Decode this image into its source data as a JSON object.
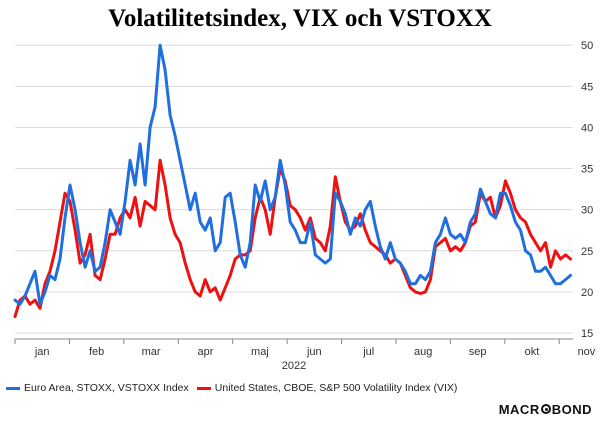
{
  "chart_data": {
    "type": "line",
    "title": "Volatilitetsindex, VIX och VSTOXX",
    "xlabel": "2022",
    "ylabel": "",
    "ylim": [
      15,
      51
    ],
    "y_ticks": [
      "15",
      "20",
      "25",
      "30",
      "35",
      "40",
      "45",
      "50"
    ],
    "x_ticks": [
      "jan",
      "feb",
      "mar",
      "apr",
      "maj",
      "jun",
      "jul",
      "aug",
      "sep",
      "okt",
      "nov"
    ],
    "x_unit": "weeks since start of 2022",
    "series": [
      {
        "name": "Euro Area, STOXX, VSTOXX Index",
        "color": "#1f6fe0",
        "x": [
          0,
          0.4,
          0.8,
          1.2,
          1.6,
          2.0,
          2.4,
          2.8,
          3.2,
          3.6,
          4.0,
          4.4,
          4.8,
          5.2,
          5.6,
          6.0,
          6.4,
          6.8,
          7.2,
          7.6,
          8.0,
          8.4,
          8.8,
          9.2,
          9.6,
          10.0,
          10.4,
          10.8,
          11.2,
          11.6,
          12.0,
          12.4,
          12.8,
          13.2,
          13.6,
          14.0,
          14.4,
          14.8,
          15.2,
          15.6,
          16.0,
          16.4,
          16.8,
          17.2,
          17.6,
          18.0,
          18.4,
          18.8,
          19.2,
          19.6,
          20.0,
          20.4,
          20.8,
          21.2,
          21.6,
          22.0,
          22.4,
          22.8,
          23.2,
          23.6,
          24.0,
          24.4,
          24.8,
          25.2,
          25.6,
          26.0,
          26.4,
          26.8,
          27.2,
          27.6,
          28.0,
          28.4,
          28.8,
          29.2,
          29.6,
          30.0,
          30.4,
          30.8,
          31.2,
          31.6,
          32.0,
          32.4,
          32.8,
          33.2,
          33.6,
          34.0,
          34.4,
          34.8,
          35.2,
          35.6,
          36.0,
          36.4,
          36.8,
          37.2,
          37.6,
          38.0,
          38.4,
          38.8,
          39.2,
          39.6,
          40.0,
          40.4,
          40.8,
          41.2,
          41.6,
          42.0,
          42.4,
          42.8,
          43.2,
          43.6,
          44.0,
          44.4
        ],
        "values": [
          19.0,
          18.5,
          19.5,
          21.0,
          22.5,
          18.5,
          20.0,
          22.0,
          21.5,
          24.0,
          29.0,
          33.0,
          30.0,
          26.0,
          23.0,
          25.0,
          22.5,
          23.0,
          26.0,
          30.0,
          28.5,
          27.0,
          31.0,
          36.0,
          33.0,
          38.0,
          33.0,
          40.0,
          42.5,
          50.0,
          47.0,
          41.5,
          39.0,
          36.0,
          33.0,
          30.0,
          32.0,
          28.5,
          27.5,
          29.0,
          25.0,
          26.0,
          31.5,
          32.0,
          28.5,
          24.5,
          23.0,
          26.0,
          33.0,
          31.0,
          33.5,
          30.0,
          31.5,
          36.0,
          33.0,
          28.5,
          27.5,
          26.0,
          26.0,
          28.5,
          24.5,
          24.0,
          23.5,
          24.0,
          32.0,
          31.0,
          29.5,
          27.0,
          29.0,
          28.0,
          30.0,
          31.0,
          28.0,
          25.5,
          24.0,
          26.0,
          24.0,
          23.5,
          22.5,
          21.0,
          21.0,
          22.0,
          21.5,
          22.5,
          26.0,
          27.0,
          29.0,
          27.0,
          26.5,
          27.0,
          26.0,
          28.5,
          29.5,
          32.5,
          31.0,
          29.5,
          29.0,
          32.0,
          32.0,
          30.5,
          28.5,
          27.5,
          25.0,
          24.5,
          22.5,
          22.5,
          23.0,
          22.0,
          21.0,
          21.0,
          21.5,
          22.0
        ]
      },
      {
        "name": "United States, CBOE, S&P 500 Volatility Index (VIX)",
        "color": "#ee1111",
        "x": [
          0,
          0.4,
          0.8,
          1.2,
          1.6,
          2.0,
          2.4,
          2.8,
          3.2,
          3.6,
          4.0,
          4.4,
          4.8,
          5.2,
          5.6,
          6.0,
          6.4,
          6.8,
          7.2,
          7.6,
          8.0,
          8.4,
          8.8,
          9.2,
          9.6,
          10.0,
          10.4,
          10.8,
          11.2,
          11.6,
          12.0,
          12.4,
          12.8,
          13.2,
          13.6,
          14.0,
          14.4,
          14.8,
          15.2,
          15.6,
          16.0,
          16.4,
          16.8,
          17.2,
          17.6,
          18.0,
          18.4,
          18.8,
          19.2,
          19.6,
          20.0,
          20.4,
          20.8,
          21.2,
          21.6,
          22.0,
          22.4,
          22.8,
          23.2,
          23.6,
          24.0,
          24.4,
          24.8,
          25.2,
          25.6,
          26.0,
          26.4,
          26.8,
          27.2,
          27.6,
          28.0,
          28.4,
          28.8,
          29.2,
          29.6,
          30.0,
          30.4,
          30.8,
          31.2,
          31.6,
          32.0,
          32.4,
          32.8,
          33.2,
          33.6,
          34.0,
          34.4,
          34.8,
          35.2,
          35.6,
          36.0,
          36.4,
          36.8,
          37.2,
          37.6,
          38.0,
          38.4,
          38.8,
          39.2,
          39.6,
          40.0,
          40.4,
          40.8,
          41.2,
          41.6,
          42.0,
          42.4,
          42.8,
          43.2,
          43.6,
          44.0,
          44.4
        ],
        "values": [
          17.0,
          19.0,
          19.5,
          18.5,
          19.0,
          18.0,
          21.0,
          22.5,
          25.0,
          28.5,
          32.0,
          31.0,
          27.5,
          23.5,
          24.5,
          27.0,
          22.0,
          21.5,
          24.0,
          27.0,
          27.0,
          29.0,
          30.0,
          29.0,
          31.5,
          28.0,
          31.0,
          30.5,
          30.0,
          36.0,
          33.0,
          29.0,
          27.0,
          26.0,
          23.5,
          21.5,
          20.0,
          19.5,
          21.5,
          20.0,
          20.5,
          19.0,
          20.5,
          22.0,
          24.0,
          24.5,
          24.5,
          25.0,
          29.0,
          31.5,
          30.0,
          27.0,
          31.5,
          35.0,
          33.5,
          30.5,
          30.0,
          29.0,
          27.5,
          29.0,
          26.5,
          26.0,
          25.0,
          28.0,
          34.0,
          31.0,
          28.5,
          27.5,
          28.0,
          29.5,
          27.5,
          26.0,
          25.5,
          25.0,
          24.5,
          23.5,
          24.0,
          23.5,
          22.0,
          20.5,
          20.0,
          19.8,
          20.0,
          21.5,
          25.5,
          26.0,
          26.5,
          25.0,
          25.5,
          25.0,
          26.0,
          28.0,
          28.5,
          32.0,
          31.0,
          31.5,
          29.0,
          30.5,
          33.5,
          32.0,
          30.0,
          29.0,
          28.5,
          27.0,
          26.0,
          25.0,
          26.0,
          23.0,
          25.0,
          24.0,
          24.5,
          24.0
        ]
      }
    ],
    "legend_position": "bottom",
    "grid": "horizontal"
  },
  "brand": "MACROBOND"
}
